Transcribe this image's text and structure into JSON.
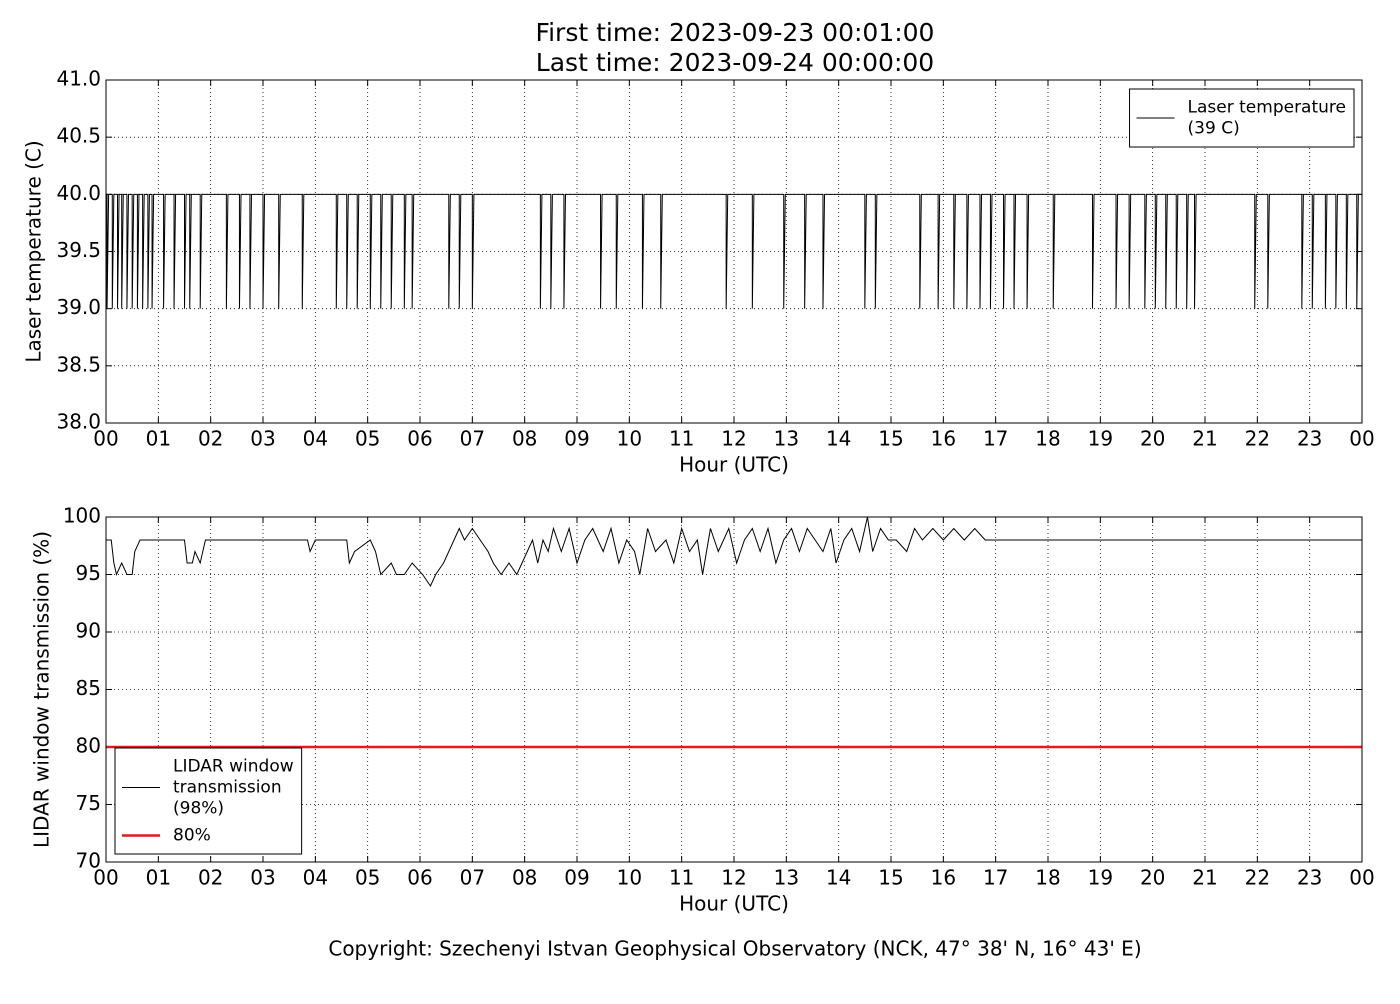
{
  "title": [
    "First time: 2023-09-23 00:01:00",
    "Last time: 2023-09-24 00:00:00"
  ],
  "footer": "Copyright: Szechenyi Istvan Geophysical Observatory (NCK, 47° 38' N, 16° 43' E)",
  "chart_data": [
    {
      "type": "line",
      "xlabel": "Hour (UTC)",
      "ylabel": "Laser temperature (C)",
      "xlim": [
        0,
        24
      ],
      "xticks": [
        {
          "value": 0,
          "label": "00"
        },
        {
          "value": 1,
          "label": "01"
        },
        {
          "value": 2,
          "label": "02"
        },
        {
          "value": 3,
          "label": "03"
        },
        {
          "value": 4,
          "label": "04"
        },
        {
          "value": 5,
          "label": "05"
        },
        {
          "value": 6,
          "label": "06"
        },
        {
          "value": 7,
          "label": "07"
        },
        {
          "value": 8,
          "label": "08"
        },
        {
          "value": 9,
          "label": "09"
        },
        {
          "value": 10,
          "label": "10"
        },
        {
          "value": 11,
          "label": "11"
        },
        {
          "value": 12,
          "label": "12"
        },
        {
          "value": 13,
          "label": "13"
        },
        {
          "value": 14,
          "label": "14"
        },
        {
          "value": 15,
          "label": "15"
        },
        {
          "value": 16,
          "label": "16"
        },
        {
          "value": 17,
          "label": "17"
        },
        {
          "value": 18,
          "label": "18"
        },
        {
          "value": 19,
          "label": "19"
        },
        {
          "value": 20,
          "label": "20"
        },
        {
          "value": 21,
          "label": "21"
        },
        {
          "value": 22,
          "label": "22"
        },
        {
          "value": 23,
          "label": "23"
        },
        {
          "value": 24,
          "label": "00"
        }
      ],
      "ylim": [
        38,
        41
      ],
      "yticks": [
        {
          "value": 38,
          "label": "38.0"
        },
        {
          "value": 38.5,
          "label": "38.5"
        },
        {
          "value": 39,
          "label": "39.0"
        },
        {
          "value": 39.5,
          "label": "39.5"
        },
        {
          "value": 40,
          "label": "40.0"
        },
        {
          "value": 40.5,
          "label": "40.5"
        },
        {
          "value": 41,
          "label": "41.0"
        }
      ],
      "grid": true,
      "legend": "upper right",
      "series": [
        {
          "name": [
            "Laser temperature",
            "(39 C)"
          ],
          "color": "#000000",
          "width": 1,
          "x": [
            0,
            0.02,
            0.02,
            0.05,
            0.12,
            0.12,
            0.15,
            0.22,
            0.22,
            0.25,
            0.3,
            0.3,
            0.33,
            0.4,
            0.4,
            0.43,
            0.5,
            0.5,
            0.53,
            0.6,
            0.6,
            0.63,
            0.7,
            0.7,
            0.73,
            0.8,
            0.8,
            0.83,
            0.88,
            0.88,
            0.91,
            1.1,
            1.1,
            1.13,
            1.3,
            1.3,
            1.33,
            1.5,
            1.5,
            1.53,
            1.6,
            1.6,
            1.63,
            1.8,
            1.8,
            1.83,
            2.3,
            2.3,
            2.33,
            2.55,
            2.55,
            2.58,
            2.75,
            2.75,
            2.78,
            3.0,
            3.0,
            3.03,
            3.3,
            3.3,
            3.33,
            3.75,
            3.75,
            3.78,
            4.4,
            4.4,
            4.43,
            4.6,
            4.6,
            4.63,
            4.8,
            4.8,
            4.83,
            5.05,
            5.05,
            5.08,
            5.25,
            5.25,
            5.28,
            5.45,
            5.45,
            5.48,
            5.7,
            5.7,
            5.73,
            5.85,
            5.85,
            5.88,
            6.55,
            6.55,
            6.58,
            6.75,
            6.75,
            6.78,
            7.0,
            7.0,
            7.03,
            8.3,
            8.3,
            8.33,
            8.5,
            8.5,
            8.53,
            8.75,
            8.75,
            8.78,
            9.45,
            9.45,
            9.48,
            9.75,
            9.75,
            9.78,
            10.25,
            10.25,
            10.28,
            10.6,
            10.6,
            10.63,
            11.85,
            11.85,
            11.88,
            12.35,
            12.35,
            12.38,
            12.95,
            12.95,
            12.98,
            13.35,
            13.35,
            13.38,
            13.7,
            13.7,
            13.73,
            14.5,
            14.5,
            14.53,
            14.7,
            14.7,
            14.73,
            15.55,
            15.55,
            15.58,
            15.9,
            15.9,
            15.93,
            16.2,
            16.2,
            16.23,
            16.45,
            16.45,
            16.48,
            16.7,
            16.7,
            16.73,
            16.9,
            16.9,
            16.93,
            17.15,
            17.15,
            17.18,
            17.35,
            17.35,
            17.38,
            17.6,
            17.6,
            17.63,
            18.1,
            18.1,
            18.13,
            18.85,
            18.85,
            18.88,
            19.3,
            19.3,
            19.33,
            19.55,
            19.55,
            19.58,
            19.85,
            19.85,
            19.88,
            20.05,
            20.05,
            20.08,
            20.25,
            20.25,
            20.28,
            20.45,
            20.45,
            20.48,
            20.65,
            20.65,
            20.68,
            20.8,
            20.8,
            20.83,
            21.95,
            21.95,
            21.98,
            22.2,
            22.2,
            22.23,
            22.85,
            22.85,
            22.88,
            23.05,
            23.05,
            23.08,
            23.3,
            23.3,
            23.33,
            23.5,
            23.5,
            23.53,
            23.7,
            23.7,
            23.73,
            23.9,
            23.9,
            23.93,
            24
          ],
          "values": [
            40,
            40,
            39,
            40,
            40,
            39,
            40,
            40,
            39,
            40,
            40,
            39,
            40,
            40,
            39,
            40,
            40,
            39,
            40,
            40,
            39,
            40,
            40,
            39,
            40,
            40,
            39,
            40,
            40,
            39,
            40,
            40,
            39,
            40,
            40,
            39,
            40,
            40,
            39,
            40,
            40,
            39,
            40,
            40,
            39,
            40,
            40,
            39,
            40,
            40,
            39,
            40,
            40,
            39,
            40,
            40,
            39,
            40,
            40,
            39,
            40,
            40,
            39,
            40,
            40,
            39,
            40,
            40,
            39,
            40,
            40,
            39,
            40,
            40,
            39,
            40,
            40,
            39,
            40,
            40,
            39,
            40,
            40,
            39,
            40,
            40,
            39,
            40,
            40,
            39,
            40,
            40,
            39,
            40,
            40,
            39,
            40,
            40,
            39,
            40,
            40,
            39,
            40,
            40,
            39,
            40,
            40,
            39,
            40,
            40,
            39,
            40,
            40,
            39,
            40,
            40,
            39,
            40,
            40,
            39,
            40,
            40,
            39,
            40,
            40,
            39,
            40,
            40,
            39,
            40,
            40,
            39,
            40,
            40,
            39,
            40,
            40,
            39,
            40,
            40,
            39,
            40,
            40,
            39,
            40,
            40,
            39,
            40,
            40,
            39,
            40,
            40,
            39,
            40,
            40,
            39,
            40,
            40,
            39,
            40,
            40,
            39,
            40,
            40,
            39,
            40,
            40,
            39,
            40,
            40,
            39,
            40,
            40,
            39,
            40,
            40,
            39,
            40,
            40,
            39,
            40,
            40,
            39,
            40,
            40,
            39,
            40,
            40,
            39,
            40,
            40,
            39,
            40,
            40,
            39,
            40,
            40,
            39,
            40,
            40,
            39,
            40,
            40,
            39,
            40,
            40,
            39,
            40,
            40,
            39,
            40,
            40,
            39,
            40,
            40,
            39,
            40,
            40,
            39,
            40,
            40
          ]
        }
      ]
    },
    {
      "type": "line",
      "xlabel": "Hour (UTC)",
      "ylabel": "LIDAR window transmission (%)",
      "xlim": [
        0,
        24
      ],
      "xticks": [
        {
          "value": 0,
          "label": "00"
        },
        {
          "value": 1,
          "label": "01"
        },
        {
          "value": 2,
          "label": "02"
        },
        {
          "value": 3,
          "label": "03"
        },
        {
          "value": 4,
          "label": "04"
        },
        {
          "value": 5,
          "label": "05"
        },
        {
          "value": 6,
          "label": "06"
        },
        {
          "value": 7,
          "label": "07"
        },
        {
          "value": 8,
          "label": "08"
        },
        {
          "value": 9,
          "label": "09"
        },
        {
          "value": 10,
          "label": "10"
        },
        {
          "value": 11,
          "label": "11"
        },
        {
          "value": 12,
          "label": "12"
        },
        {
          "value": 13,
          "label": "13"
        },
        {
          "value": 14,
          "label": "14"
        },
        {
          "value": 15,
          "label": "15"
        },
        {
          "value": 16,
          "label": "16"
        },
        {
          "value": 17,
          "label": "17"
        },
        {
          "value": 18,
          "label": "18"
        },
        {
          "value": 19,
          "label": "19"
        },
        {
          "value": 20,
          "label": "20"
        },
        {
          "value": 21,
          "label": "21"
        },
        {
          "value": 22,
          "label": "22"
        },
        {
          "value": 23,
          "label": "23"
        },
        {
          "value": 24,
          "label": "00"
        }
      ],
      "ylim": [
        70,
        100
      ],
      "yticks": [
        70,
        75,
        80,
        85,
        90,
        95,
        100
      ],
      "grid": true,
      "legend": "lower left",
      "series": [
        {
          "name": [
            "LIDAR window",
            "transmission",
            "(98%)"
          ],
          "color": "#000000",
          "width": 1,
          "x": [
            0,
            0.1,
            0.15,
            0.2,
            0.3,
            0.4,
            0.5,
            0.55,
            0.65,
            1.5,
            1.55,
            1.65,
            1.7,
            1.8,
            1.9,
            2.0,
            3.85,
            3.9,
            4.0,
            4.6,
            4.65,
            4.75,
            5.05,
            5.15,
            5.25,
            5.45,
            5.55,
            5.7,
            5.85,
            6.05,
            6.2,
            6.3,
            6.45,
            6.55,
            6.65,
            6.75,
            6.85,
            7.0,
            7.15,
            7.3,
            7.4,
            7.55,
            7.7,
            7.85,
            7.95,
            8.05,
            8.15,
            8.25,
            8.35,
            8.45,
            8.55,
            8.7,
            8.85,
            9.0,
            9.15,
            9.3,
            9.5,
            9.65,
            9.8,
            9.95,
            10.1,
            10.2,
            10.35,
            10.5,
            10.7,
            10.85,
            11.0,
            11.15,
            11.3,
            11.4,
            11.55,
            11.7,
            11.9,
            12.05,
            12.2,
            12.35,
            12.5,
            12.65,
            12.8,
            12.95,
            13.1,
            13.25,
            13.4,
            13.55,
            13.7,
            13.85,
            13.95,
            14.1,
            14.25,
            14.4,
            14.55,
            14.65,
            14.8,
            14.95,
            15.1,
            15.3,
            15.45,
            15.6,
            15.8,
            16.0,
            16.2,
            16.4,
            16.6,
            16.8,
            24
          ],
          "values": [
            98,
            98,
            96,
            95,
            96,
            95,
            95,
            97,
            98,
            98,
            96,
            96,
            97,
            96,
            98,
            98,
            98,
            97,
            98,
            98,
            96,
            97,
            98,
            97,
            95,
            96,
            95,
            95,
            96,
            95,
            94,
            95,
            96,
            97,
            98,
            99,
            98,
            99,
            98,
            97,
            96,
            95,
            96,
            95,
            96,
            97,
            98,
            96,
            98,
            97,
            99,
            97,
            99,
            96,
            98,
            99,
            97,
            99,
            96,
            98,
            97,
            95,
            99,
            97,
            98,
            96,
            99,
            97,
            98,
            95,
            99,
            97,
            99,
            96,
            98,
            99,
            97,
            99,
            96,
            98,
            99,
            97,
            99,
            98,
            97,
            99,
            96,
            98,
            99,
            97,
            100,
            97,
            99,
            98,
            98,
            97,
            99,
            98,
            99,
            98,
            99,
            98,
            99,
            98,
            98
          ]
        },
        {
          "name": [
            "80%"
          ],
          "color": "#e31a1c",
          "width": 2.5,
          "x": [
            0,
            24
          ],
          "values": [
            80,
            80
          ]
        }
      ]
    }
  ]
}
